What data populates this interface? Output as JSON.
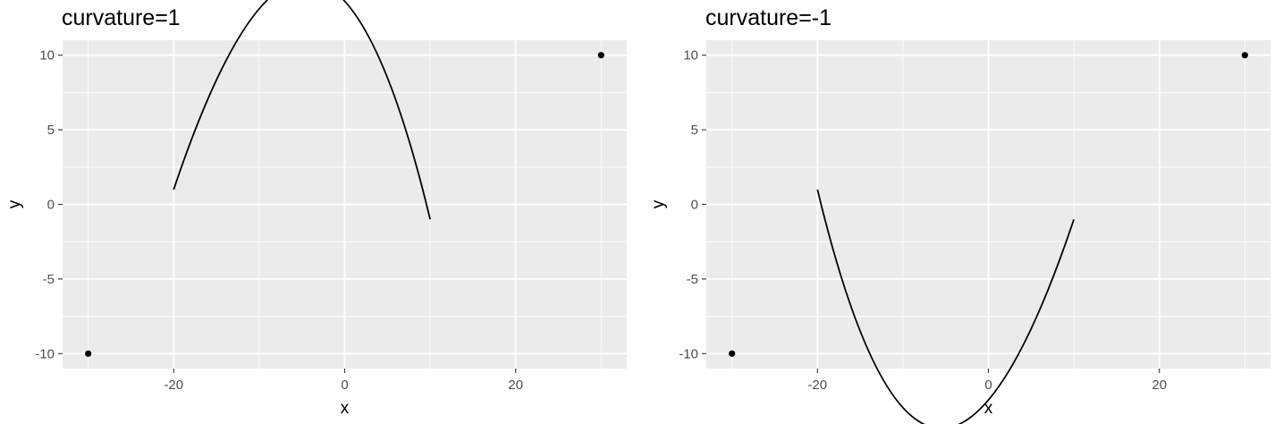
{
  "chart_data": [
    {
      "type": "scatter",
      "title": "curvature=1",
      "xlabel": "x",
      "ylabel": "y",
      "xlim": [
        -33,
        33
      ],
      "ylim": [
        -11,
        11
      ],
      "xticks": [
        -20,
        0,
        20
      ],
      "xtick_labels": [
        "-20",
        "0",
        "20"
      ],
      "yticks": [
        -10,
        -5,
        0,
        5,
        10
      ],
      "ytick_labels": [
        "-10",
        "-5",
        "0",
        "5",
        "10"
      ],
      "points": [
        {
          "x": -30,
          "y": -10
        },
        {
          "x": 30,
          "y": 10
        }
      ],
      "curve": {
        "x_start": -20,
        "y_start": 1,
        "x_end": 10,
        "y_end": -1,
        "curvature": 1
      },
      "grid": true,
      "colors": {
        "panel": "#ebebeb",
        "grid": "#ffffff",
        "marks": "#000000"
      }
    },
    {
      "type": "scatter",
      "title": "curvature=-1",
      "xlabel": "x",
      "ylabel": "y",
      "xlim": [
        -33,
        33
      ],
      "ylim": [
        -11,
        11
      ],
      "xticks": [
        -20,
        0,
        20
      ],
      "xtick_labels": [
        "-20",
        "0",
        "20"
      ],
      "yticks": [
        -10,
        -5,
        0,
        5,
        10
      ],
      "ytick_labels": [
        "-10",
        "-5",
        "0",
        "5",
        "10"
      ],
      "points": [
        {
          "x": -30,
          "y": -10
        },
        {
          "x": 30,
          "y": 10
        }
      ],
      "curve": {
        "x_start": -20,
        "y_start": 1,
        "x_end": 10,
        "y_end": -1,
        "curvature": -1
      },
      "grid": true,
      "colors": {
        "panel": "#ebebeb",
        "grid": "#ffffff",
        "marks": "#000000"
      }
    }
  ]
}
